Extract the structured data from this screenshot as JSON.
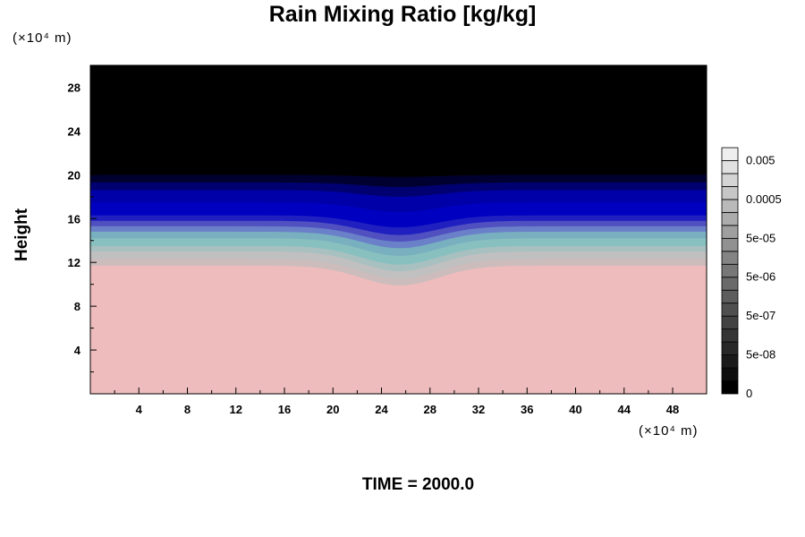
{
  "chart_data": {
    "type": "heatmap",
    "title": "Rain Mixing Ratio [kg/kg]",
    "xlabel": "",
    "ylabel": "Height",
    "x_unit": "(×10⁴ m)",
    "y_unit": "(×10⁴ m)",
    "xlim": [
      0,
      50.8
    ],
    "ylim": [
      0,
      30
    ],
    "x_ticks": [
      4,
      8,
      12,
      16,
      20,
      24,
      28,
      32,
      36,
      40,
      44,
      48
    ],
    "y_ticks": [
      4,
      8,
      12,
      16,
      20,
      24,
      28
    ],
    "dip_center_x": 25.5,
    "layers": [
      {
        "top": 30,
        "color": "#000000",
        "dip": 0
      },
      {
        "top": 20,
        "color": "#000030",
        "dip": 0.2
      },
      {
        "top": 19.3,
        "color": "#000070",
        "dip": 0.4
      },
      {
        "top": 18.6,
        "color": "#0000a8",
        "dip": 0.6
      },
      {
        "top": 17.5,
        "color": "#0000c0",
        "dip": 0.9
      },
      {
        "top": 16.3,
        "color": "#2020c0",
        "dip": 1.1
      },
      {
        "top": 15.8,
        "color": "#5050c0",
        "dip": 1.3
      },
      {
        "top": 15.3,
        "color": "#6a80c8",
        "dip": 1.4
      },
      {
        "top": 14.8,
        "color": "#78b0c0",
        "dip": 1.5
      },
      {
        "top": 14.2,
        "color": "#88c0c0",
        "dip": 1.6
      },
      {
        "top": 13.5,
        "color": "#a8c0c0",
        "dip": 1.7
      },
      {
        "top": 13.0,
        "color": "#c0c0c0",
        "dip": 1.8
      },
      {
        "top": 12.3,
        "color": "#ccbcbc",
        "dip": 1.8
      },
      {
        "top": 11.7,
        "color": "#eebcbc",
        "dip": 1.8
      }
    ],
    "colorbar": {
      "labels": [
        "0.005",
        "0.0005",
        "5e-05",
        "5e-06",
        "5e-07",
        "5e-08",
        "0"
      ],
      "levels": 19,
      "colormap": "grayscale"
    },
    "annotation": "TIME = 2000.0"
  }
}
